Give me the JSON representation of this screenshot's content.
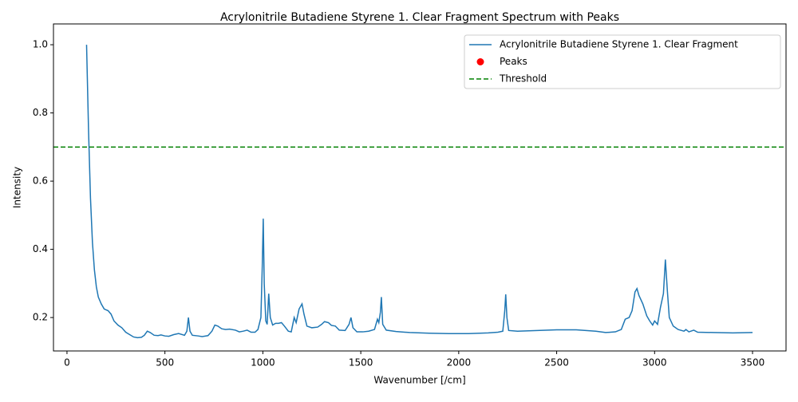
{
  "chart_data": {
    "type": "line",
    "title": "Acrylonitrile Butadiene Styrene 1. Clear Fragment Spectrum with Peaks",
    "xlabel": "Wavenumber [/cm]",
    "ylabel": "Intensity",
    "xlim": [
      -69,
      3671
    ],
    "ylim": [
      0.102,
      1.061
    ],
    "xticks": [
      0,
      500,
      1000,
      1500,
      2000,
      2500,
      3000,
      3500
    ],
    "yticks": [
      0.2,
      0.4,
      0.6,
      0.8,
      {
        "value": 1,
        "label": "1.0"
      }
    ],
    "legend": "upper right",
    "series": [
      {
        "name": "Acrylonitrile Butadiene Styrene 1. Clear Fragment",
        "color": "#1f77b4",
        "x": [
          100,
          110,
          120,
          130,
          140,
          150,
          160,
          175,
          190,
          210,
          225,
          240,
          260,
          280,
          300,
          320,
          340,
          360,
          380,
          395,
          410,
          425,
          445,
          465,
          480,
          500,
          520,
          545,
          570,
          600,
          612,
          620,
          628,
          640,
          670,
          690,
          720,
          740,
          755,
          770,
          790,
          810,
          830,
          860,
          880,
          900,
          920,
          940,
          960,
          975,
          990,
          997,
          1002,
          1007,
          1015,
          1022,
          1030,
          1038,
          1050,
          1065,
          1080,
          1095,
          1110,
          1130,
          1145,
          1160,
          1170,
          1185,
          1200,
          1210,
          1225,
          1250,
          1280,
          1300,
          1315,
          1335,
          1350,
          1370,
          1390,
          1420,
          1440,
          1450,
          1460,
          1480,
          1510,
          1540,
          1570,
          1585,
          1592,
          1600,
          1605,
          1612,
          1630,
          1680,
          1750,
          1850,
          1950,
          2050,
          2150,
          2200,
          2225,
          2235,
          2240,
          2246,
          2255,
          2300,
          2400,
          2500,
          2600,
          2700,
          2750,
          2800,
          2830,
          2850,
          2870,
          2885,
          2900,
          2910,
          2920,
          2940,
          2960,
          2975,
          2990,
          3000,
          3015,
          3030,
          3045,
          3055,
          3065,
          3075,
          3095,
          3120,
          3150,
          3160,
          3175,
          3200,
          3220,
          3300,
          3400,
          3500
        ],
        "values": [
          1.0,
          0.75,
          0.55,
          0.42,
          0.34,
          0.29,
          0.26,
          0.24,
          0.225,
          0.22,
          0.21,
          0.19,
          0.178,
          0.17,
          0.157,
          0.15,
          0.143,
          0.141,
          0.142,
          0.148,
          0.16,
          0.156,
          0.148,
          0.147,
          0.149,
          0.146,
          0.145,
          0.15,
          0.153,
          0.148,
          0.16,
          0.2,
          0.16,
          0.148,
          0.146,
          0.144,
          0.147,
          0.16,
          0.178,
          0.175,
          0.167,
          0.165,
          0.166,
          0.163,
          0.158,
          0.16,
          0.163,
          0.157,
          0.157,
          0.165,
          0.2,
          0.35,
          0.49,
          0.3,
          0.19,
          0.18,
          0.27,
          0.2,
          0.178,
          0.183,
          0.183,
          0.185,
          0.175,
          0.16,
          0.158,
          0.2,
          0.185,
          0.225,
          0.24,
          0.21,
          0.175,
          0.17,
          0.172,
          0.18,
          0.188,
          0.185,
          0.177,
          0.175,
          0.163,
          0.162,
          0.18,
          0.2,
          0.17,
          0.158,
          0.158,
          0.16,
          0.165,
          0.195,
          0.185,
          0.215,
          0.26,
          0.18,
          0.163,
          0.159,
          0.156,
          0.154,
          0.153,
          0.153,
          0.155,
          0.157,
          0.16,
          0.22,
          0.268,
          0.2,
          0.162,
          0.16,
          0.162,
          0.164,
          0.164,
          0.16,
          0.156,
          0.158,
          0.165,
          0.195,
          0.2,
          0.22,
          0.275,
          0.285,
          0.265,
          0.24,
          0.205,
          0.19,
          0.178,
          0.19,
          0.18,
          0.23,
          0.27,
          0.37,
          0.28,
          0.2,
          0.175,
          0.165,
          0.16,
          0.165,
          0.158,
          0.163,
          0.157,
          0.156,
          0.155,
          0.156
        ]
      },
      {
        "name": "Peaks",
        "color": "#ff0000",
        "x": [],
        "values": []
      }
    ],
    "threshold": {
      "name": "Threshold",
      "value": 0.7,
      "color": "#008000"
    }
  }
}
